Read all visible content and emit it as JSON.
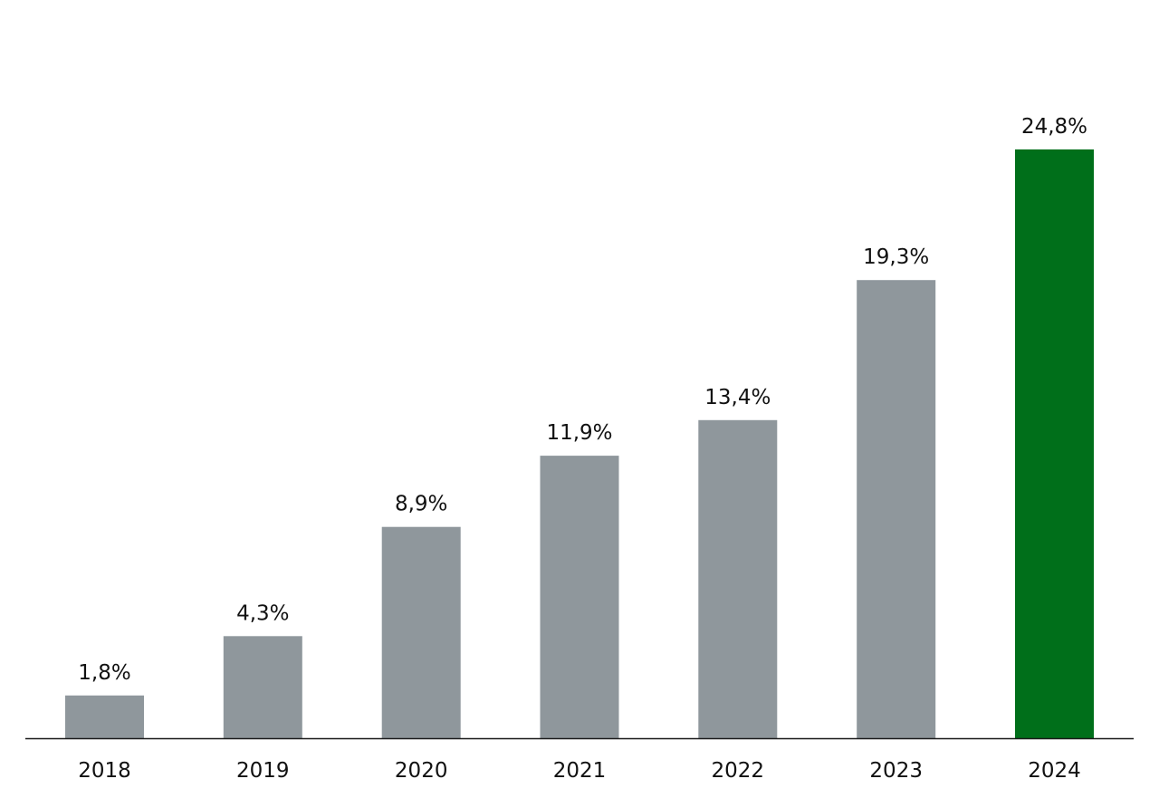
{
  "chart_data": {
    "type": "bar",
    "categories": [
      "2018",
      "2019",
      "2020",
      "2021",
      "2022",
      "2023",
      "2024"
    ],
    "values": [
      1.8,
      4.3,
      8.9,
      11.9,
      13.4,
      19.3,
      24.8
    ],
    "data_labels": [
      "1,8%",
      "4,3%",
      "8,9%",
      "11,9%",
      "13,4%",
      "19,3%",
      "24,8%"
    ],
    "value_unit": "%",
    "ylim": [
      0,
      24.8
    ],
    "grid": false,
    "legend": "none",
    "colors": {
      "default_bar": "#8f979c",
      "highlight_bar": "#006f1a",
      "baseline": "#1a1a1a"
    },
    "highlight_category": "2024"
  }
}
